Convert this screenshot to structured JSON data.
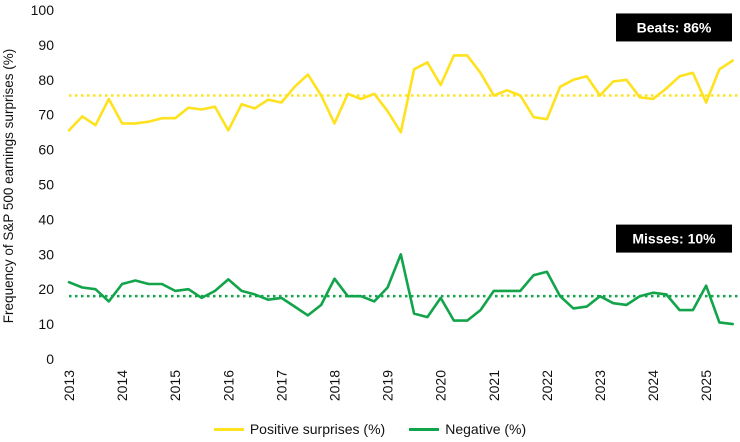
{
  "chart_data": {
    "type": "line",
    "ylabel": "Frequency of  S&P 500 earnings  surprises (%)",
    "ylim": [
      0,
      100
    ],
    "yticks": [
      0,
      10,
      20,
      30,
      40,
      50,
      60,
      70,
      80,
      90,
      100
    ],
    "xlim": [
      2013,
      2025.6
    ],
    "xticks": [
      "2013",
      "2014",
      "2015",
      "2016",
      "2017",
      "2018",
      "2019",
      "2020",
      "2021",
      "2022",
      "2023",
      "2024",
      "2025"
    ],
    "grid": false,
    "legend_position": "bottom",
    "series": [
      {
        "name": "Positive surprises (%)",
        "color": "#FFE21F",
        "x": [
          2013.0,
          2013.25,
          2013.5,
          2013.75,
          2014.0,
          2014.25,
          2014.5,
          2014.75,
          2015.0,
          2015.25,
          2015.5,
          2015.75,
          2016.0,
          2016.25,
          2016.5,
          2016.75,
          2017.0,
          2017.25,
          2017.5,
          2017.75,
          2018.0,
          2018.25,
          2018.5,
          2018.75,
          2019.0,
          2019.25,
          2019.5,
          2019.75,
          2020.0,
          2020.25,
          2020.5,
          2020.75,
          2021.0,
          2021.25,
          2021.5,
          2021.75,
          2022.0,
          2022.25,
          2022.5,
          2022.75,
          2023.0,
          2023.25,
          2023.5,
          2023.75,
          2024.0,
          2024.25,
          2024.5,
          2024.75,
          2025.0,
          2025.25,
          2025.5
        ],
        "values": [
          65.5,
          69.5,
          67.0,
          74.5,
          67.5,
          67.5,
          68.0,
          69.0,
          69.0,
          72.0,
          71.5,
          72.3,
          65.5,
          73.0,
          71.8,
          74.3,
          73.5,
          78.0,
          81.5,
          75.5,
          67.5,
          76.0,
          74.5,
          76.0,
          71.0,
          65.0,
          83.0,
          85.0,
          78.5,
          87.0,
          87.0,
          82.0,
          75.5,
          77.0,
          75.5,
          69.3,
          68.7,
          78.0,
          80.0,
          81.0,
          75.5,
          79.5,
          80.0,
          75.0,
          74.5,
          77.5,
          81.0,
          82.0,
          73.5,
          83.0,
          85.5
        ]
      },
      {
        "name": "Negative (%)",
        "color": "#12A44A",
        "x": [
          2013.0,
          2013.25,
          2013.5,
          2013.75,
          2014.0,
          2014.25,
          2014.5,
          2014.75,
          2015.0,
          2015.25,
          2015.5,
          2015.75,
          2016.0,
          2016.25,
          2016.5,
          2016.75,
          2017.0,
          2017.25,
          2017.5,
          2017.75,
          2018.0,
          2018.25,
          2018.5,
          2018.75,
          2019.0,
          2019.25,
          2019.5,
          2019.75,
          2020.0,
          2020.25,
          2020.5,
          2020.75,
          2021.0,
          2021.25,
          2021.5,
          2021.75,
          2022.0,
          2022.25,
          2022.5,
          2022.75,
          2023.0,
          2023.25,
          2023.5,
          2023.75,
          2024.0,
          2024.25,
          2024.5,
          2024.75,
          2025.0,
          2025.25,
          2025.5
        ],
        "values": [
          22.0,
          20.5,
          20.0,
          16.5,
          21.5,
          22.5,
          21.5,
          21.5,
          19.5,
          20.0,
          17.5,
          19.5,
          22.8,
          19.5,
          18.5,
          17.0,
          17.5,
          15.0,
          12.5,
          15.5,
          23.0,
          18.0,
          18.0,
          16.5,
          20.5,
          30.0,
          13.0,
          12.0,
          17.5,
          11.0,
          11.0,
          14.0,
          19.5,
          19.5,
          19.5,
          24.0,
          25.0,
          18.0,
          14.5,
          15.0,
          18.0,
          16.0,
          15.5,
          18.0,
          19.0,
          18.5,
          14.0,
          14.0,
          21.0,
          10.5,
          10.0
        ]
      }
    ],
    "reference_lines": [
      {
        "y": 75.5,
        "color": "#FFE21F",
        "style": "dotted"
      },
      {
        "y": 18.0,
        "color": "#12A44A",
        "style": "dotted"
      }
    ],
    "annotations": [
      {
        "text": "Beats: 86%",
        "anchor_y": 95
      },
      {
        "text": "Misses: 10%",
        "anchor_y": 34.5
      }
    ]
  },
  "legend": {
    "positive_label": "Positive surprises (%)",
    "negative_label": "Negative (%)"
  }
}
